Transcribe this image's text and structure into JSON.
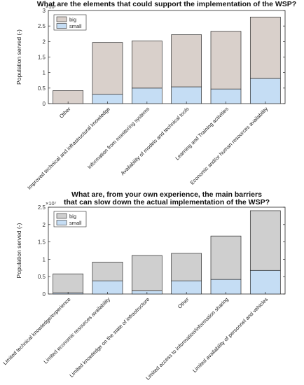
{
  "chart_data": [
    {
      "type": "bar",
      "stacked": true,
      "title": [
        "What are the elements that could support the implementation of the WSP?"
      ],
      "ylabel": "Population served (-)",
      "exponent_label": "×10⁷",
      "ylim": [
        0,
        3
      ],
      "yticks": [
        "0",
        "0.5",
        "1",
        "1.5",
        "2",
        "2.5",
        "3"
      ],
      "categories": [
        "Other",
        "Improved technical and infrastructural knowledge",
        "Information from monitoring systems",
        "Availability of models and technical tools",
        "Learning and Training activities",
        "Economic and/or human resources availability"
      ],
      "series": [
        {
          "name": "big",
          "color": "#d9d0cb",
          "values": [
            0.42,
            1.67,
            1.52,
            1.68,
            1.86,
            1.98
          ]
        },
        {
          "name": "small",
          "color": "#c5ddf4",
          "values": [
            0.0,
            0.3,
            0.5,
            0.54,
            0.47,
            0.81
          ]
        }
      ],
      "grid": false,
      "legend_position": "top-left"
    },
    {
      "type": "bar",
      "stacked": true,
      "title": [
        "What are, from your own experience, the main barriers",
        "that can slow down the actual implementation of the WSP?"
      ],
      "ylabel": "Population served (-)",
      "exponent_label": "×10⁷",
      "ylim": [
        0,
        2.5
      ],
      "yticks": [
        "0",
        "0.5",
        "1",
        "1.5",
        "2",
        "2.5"
      ],
      "categories": [
        "Limited technical knowledge/experience",
        "Limited economic resources availability",
        "Limited knowledge on the state of infrastructure",
        "Other",
        "Limited access to information/information sharing",
        "Limited availability of personnel and vehicles"
      ],
      "series": [
        {
          "name": "big",
          "color": "#cfcfcf",
          "values": [
            0.55,
            0.54,
            1.02,
            0.79,
            1.25,
            1.72
          ]
        },
        {
          "name": "small",
          "color": "#c5ddf4",
          "values": [
            0.03,
            0.38,
            0.09,
            0.38,
            0.42,
            0.68
          ]
        }
      ],
      "grid": false,
      "legend_position": "top-left"
    }
  ]
}
